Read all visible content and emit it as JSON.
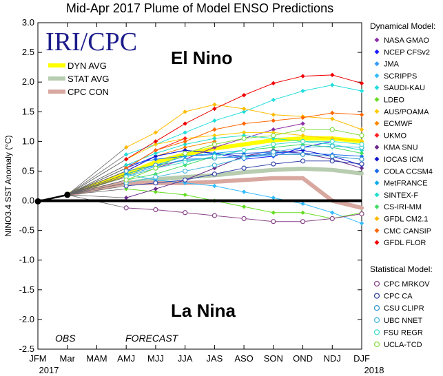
{
  "chart_data": {
    "type": "line",
    "title": "Mid-Apr 2017 Plume of Model ENSO Predictions",
    "ylabel": "NINO3.4 SST Anomaly (°C)",
    "xlabel": "",
    "ylim": [
      -2.5,
      3.0
    ],
    "yticks": [
      -2.5,
      -2.0,
      -1.5,
      -1.0,
      -0.5,
      0.0,
      0.5,
      1.0,
      1.5,
      2.0,
      2.5,
      3.0
    ],
    "ytick_labels": [
      "-2.5",
      "-2.0",
      "-1.5",
      "-1.0",
      "-0.5",
      "0.0",
      "0.5",
      "1.0",
      "1.5",
      "2.0",
      "2.5",
      "3.0"
    ],
    "categories": [
      "JFM",
      "Mar",
      "MAM",
      "AMJ",
      "MJJ",
      "JJA",
      "JAS",
      "ASO",
      "SON",
      "OND",
      "NDJ",
      "DJF"
    ],
    "year_labels": [
      "2017",
      "2018"
    ],
    "logo": "IRI/CPC",
    "annotations": {
      "el_nino": "El Nino",
      "la_nina": "La Nina",
      "obs": "OBS",
      "forecast": "FORECAST"
    },
    "observed": [
      -0.01,
      0.1
    ],
    "averages": [
      {
        "name": "DYN AVG",
        "color": "#ffff00",
        "values": [
          null,
          null,
          null,
          0.45,
          0.65,
          0.78,
          0.88,
          0.95,
          1.02,
          1.05,
          1.05,
          1.0
        ]
      },
      {
        "name": "STAT AVG",
        "color": "#b8ccb0",
        "values": [
          null,
          null,
          null,
          0.3,
          0.36,
          0.4,
          0.43,
          0.48,
          0.52,
          0.54,
          0.52,
          0.46
        ]
      },
      {
        "name": "CPC CON",
        "color": "#d8a8a0",
        "values": [
          null,
          null,
          null,
          0.3,
          0.3,
          0.3,
          0.32,
          0.35,
          0.38,
          0.38,
          0.0,
          -0.12
        ]
      }
    ],
    "legend_dynamical_title": "Dynamical Model:",
    "legend_statistical_title": "Statistical Model:",
    "series": [
      {
        "name": "NASA GMAO",
        "group": "dyn",
        "color": "#8b2da8",
        "values": [
          null,
          null,
          null,
          0.4,
          0.55,
          0.7,
          0.9,
          1.05,
          1.2,
          1.3,
          null,
          null
        ]
      },
      {
        "name": "NCEP CFSv2",
        "group": "dyn",
        "color": "#1a1aff",
        "values": [
          null,
          null,
          null,
          0.55,
          0.75,
          0.85,
          0.8,
          0.7,
          0.75,
          0.9,
          1.0,
          null
        ]
      },
      {
        "name": "JMA",
        "group": "dyn",
        "color": "#3399ff",
        "values": [
          null,
          null,
          null,
          0.42,
          0.58,
          0.7,
          0.72,
          0.74,
          0.76,
          null,
          null,
          null
        ]
      },
      {
        "name": "SCRIPPS",
        "group": "dyn",
        "color": "#33bbff",
        "values": [
          null,
          null,
          null,
          0.45,
          0.35,
          0.3,
          0.25,
          0.15,
          0.05,
          -0.05,
          -0.2,
          -0.38
        ]
      },
      {
        "name": "SAUDI-KAU",
        "group": "dyn",
        "color": "#22dddd",
        "values": [
          null,
          null,
          null,
          0.78,
          0.95,
          1.15,
          1.35,
          1.5,
          1.7,
          1.85,
          1.95,
          1.85
        ]
      },
      {
        "name": "LDEO",
        "group": "dyn",
        "color": "#66dd22",
        "values": [
          null,
          null,
          null,
          0.2,
          0.15,
          0.1,
          0.0,
          -0.1,
          -0.2,
          -0.2,
          -0.3,
          -0.2
        ]
      },
      {
        "name": "AUS/POAMA",
        "group": "dyn",
        "color": "#ffcc00",
        "values": [
          null,
          null,
          null,
          0.7,
          0.95,
          1.05,
          1.1,
          1.15,
          1.15,
          1.1,
          1.05,
          1.0
        ]
      },
      {
        "name": "ECMWF",
        "group": "dyn",
        "color": "#ff8800",
        "values": [
          null,
          null,
          null,
          0.5,
          0.75,
          0.9,
          1.0,
          null,
          null,
          null,
          null,
          null
        ]
      },
      {
        "name": "UKMO",
        "group": "dyn",
        "color": "#ff2222",
        "values": [
          null,
          null,
          null,
          0.55,
          0.85,
          1.05,
          null,
          null,
          null,
          null,
          null,
          null
        ]
      },
      {
        "name": "KMA SNU",
        "group": "dyn",
        "color": "#6a2a8a",
        "values": [
          null,
          null,
          null,
          0.05,
          0.2,
          0.35,
          0.55,
          0.75,
          0.85,
          0.8,
          0.7,
          0.55
        ]
      },
      {
        "name": "IOCAS ICM",
        "group": "dyn",
        "color": "#1515cc",
        "values": [
          null,
          null,
          null,
          0.5,
          0.75,
          0.85,
          0.8,
          0.75,
          0.8,
          0.85,
          0.75,
          0.6
        ]
      },
      {
        "name": "COLA CCSM4",
        "group": "dyn",
        "color": "#1a6aee",
        "values": [
          null,
          null,
          null,
          0.6,
          0.7,
          0.75,
          0.78,
          0.8,
          0.82,
          0.8,
          0.78,
          0.75
        ]
      },
      {
        "name": "MetFRANCE",
        "group": "dyn",
        "color": "#11aaee",
        "values": [
          null,
          null,
          null,
          0.45,
          0.6,
          0.75,
          0.8,
          0.85,
          null,
          null,
          null,
          null
        ]
      },
      {
        "name": "SINTEX-F",
        "group": "dyn",
        "color": "#22ddcc",
        "values": [
          null,
          null,
          null,
          0.6,
          0.8,
          0.95,
          1.05,
          1.1,
          1.05,
          1.0,
          0.95,
          0.85
        ]
      },
      {
        "name": "CS-IRI-MM",
        "group": "dyn",
        "color": "#44dd66",
        "values": [
          null,
          null,
          null,
          0.35,
          0.45,
          0.6,
          0.75,
          0.85,
          0.9,
          0.95,
          0.9,
          0.8
        ]
      },
      {
        "name": "GFDL CM2.1",
        "group": "dyn",
        "color": "#ffbb00",
        "values": [
          null,
          null,
          null,
          0.9,
          1.15,
          1.5,
          1.62,
          1.55,
          1.45,
          1.42,
          1.38,
          1.2
        ]
      },
      {
        "name": "CMC CANSIP",
        "group": "dyn",
        "color": "#ff6600",
        "values": [
          null,
          null,
          null,
          0.55,
          0.85,
          1.0,
          1.2,
          1.3,
          1.35,
          1.4,
          1.48,
          1.45
        ]
      },
      {
        "name": "GFDL FLOR",
        "group": "dyn",
        "color": "#ee0000",
        "values": [
          null,
          null,
          null,
          0.7,
          1.0,
          1.3,
          1.55,
          1.78,
          1.98,
          2.1,
          2.12,
          1.98
        ]
      },
      {
        "name": "CPC MRKOV",
        "group": "stat",
        "color": "#884488",
        "values": [
          null,
          null,
          null,
          -0.12,
          -0.15,
          -0.2,
          -0.25,
          -0.3,
          -0.35,
          -0.35,
          -0.3,
          -0.22
        ]
      },
      {
        "name": "CPC CA",
        "group": "stat",
        "color": "#3344aa",
        "values": [
          null,
          null,
          null,
          0.25,
          0.3,
          0.35,
          0.45,
          0.55,
          0.62,
          0.67,
          0.67,
          0.62
        ]
      },
      {
        "name": "CSU CLIPR",
        "group": "stat",
        "color": "#3399cc",
        "values": [
          null,
          null,
          null,
          0.5,
          0.6,
          0.68,
          0.72,
          0.75,
          0.78,
          0.78,
          0.75,
          0.7
        ]
      },
      {
        "name": "UBC NNET",
        "group": "stat",
        "color": "#44bbdd",
        "values": [
          null,
          null,
          null,
          0.3,
          0.4,
          0.5,
          0.6,
          0.72,
          0.82,
          0.9,
          0.92,
          0.9
        ]
      },
      {
        "name": "FSU REGR",
        "group": "stat",
        "color": "#44ddcc",
        "values": [
          null,
          null,
          null,
          0.4,
          0.55,
          0.65,
          0.75,
          0.85,
          0.95,
          1.0,
          1.0,
          0.95
        ]
      },
      {
        "name": "UCLA-TCD",
        "group": "stat",
        "color": "#88dd44",
        "values": [
          null,
          null,
          null,
          0.35,
          0.55,
          0.8,
          0.95,
          1.05,
          1.1,
          1.2,
          1.2,
          1.1
        ]
      }
    ]
  }
}
